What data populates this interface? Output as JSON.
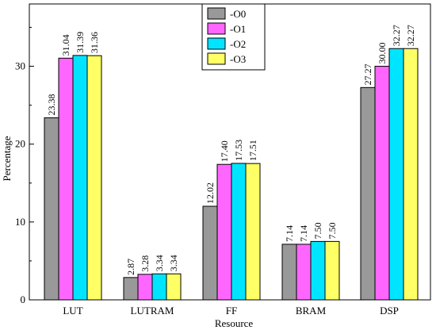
{
  "chart_data": {
    "type": "bar",
    "xlabel": "Resource",
    "ylabel": "Percentage",
    "categories": [
      "LUT",
      "LUTRAM",
      "FF",
      "BRAM",
      "DSP"
    ],
    "series": [
      {
        "name": "-O0",
        "color": "#999999",
        "values": [
          23.38,
          2.87,
          12.02,
          7.14,
          27.27
        ],
        "labels": [
          "23.38",
          "2.87",
          "12.02",
          "7.14",
          "27.27"
        ]
      },
      {
        "name": "-O1",
        "color": "#ff66ff",
        "values": [
          31.04,
          3.28,
          17.4,
          7.14,
          30.0
        ],
        "labels": [
          "31.04",
          "3.28",
          "17.40",
          "7.14",
          "30.00"
        ]
      },
      {
        "name": "-O2",
        "color": "#00e5ff",
        "values": [
          31.39,
          3.34,
          17.53,
          7.5,
          32.27
        ],
        "labels": [
          "31.39",
          "3.34",
          "17.53",
          "7.50",
          "32.27"
        ]
      },
      {
        "name": "-O3",
        "color": "#ffff66",
        "values": [
          31.36,
          3.34,
          17.51,
          7.5,
          32.27
        ],
        "labels": [
          "31.36",
          "3.34",
          "17.51",
          "7.50",
          "32.27"
        ]
      }
    ],
    "yticks": [
      "0",
      "10",
      "20",
      "30"
    ],
    "ylim": [
      0,
      38
    ],
    "legend_position": "top-center",
    "grid": false
  }
}
